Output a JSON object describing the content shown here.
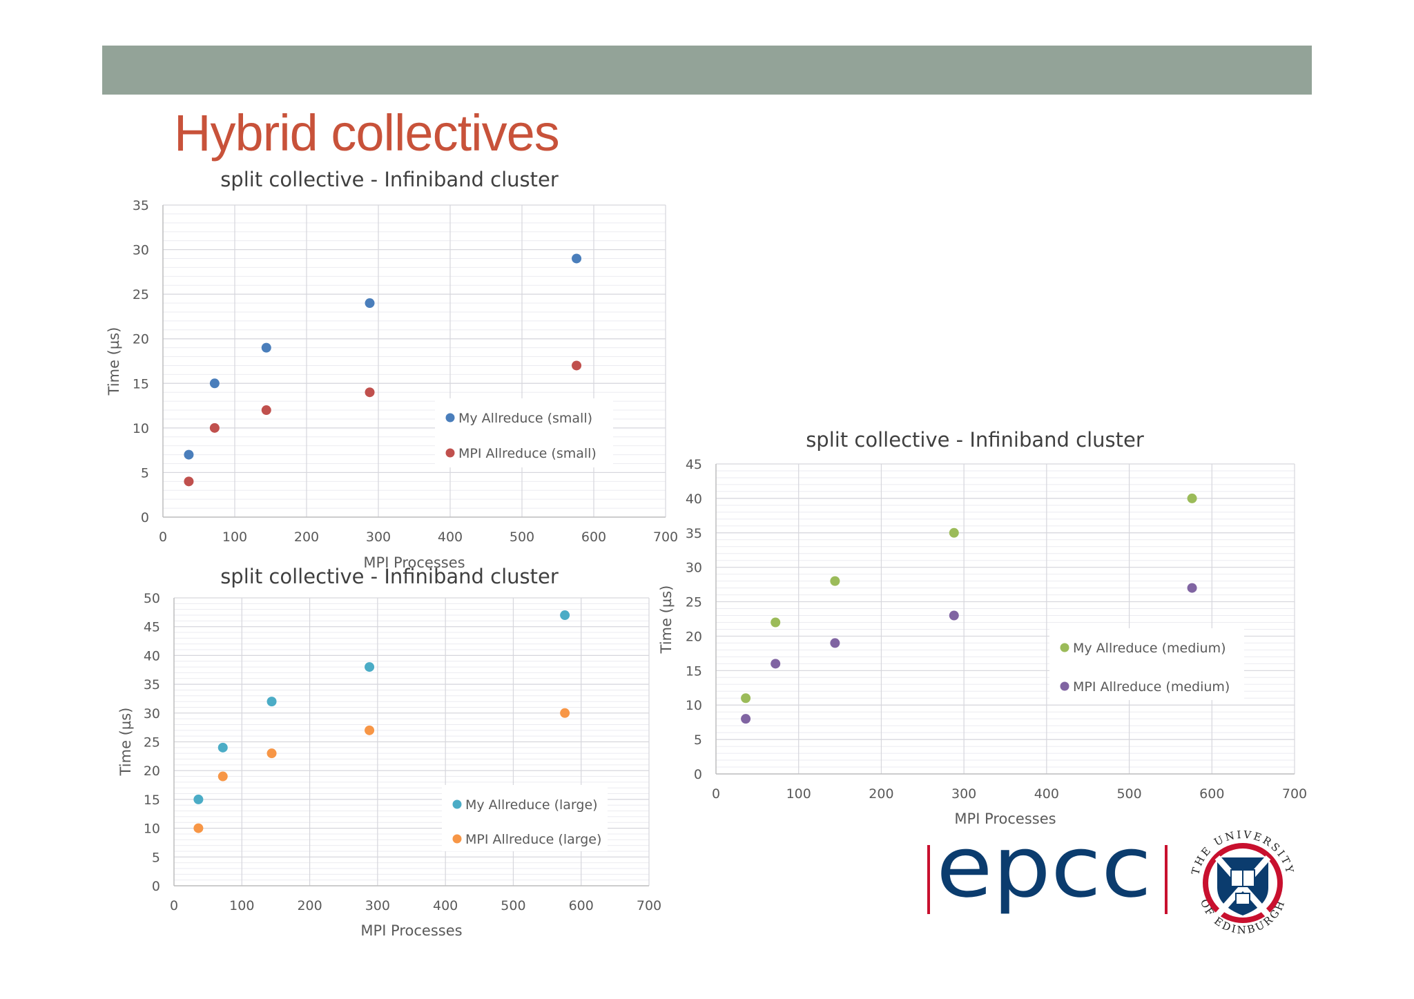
{
  "slide": {
    "title": "Hybrid collectives",
    "colors": {
      "band": "#93a398",
      "title": "#c8523a"
    }
  },
  "logos": {
    "epcc_text": "epcc",
    "university_text_top": "THE UNIVERSITY",
    "university_text_bottom": "OF EDINBURGH"
  },
  "chart_data": [
    {
      "type": "scatter",
      "title": "split collective - Infiniband cluster",
      "xlabel": "MPI Processes",
      "ylabel": "Time (µs)",
      "xlim": [
        0,
        700
      ],
      "ylim": [
        0,
        35
      ],
      "xticks": [
        0,
        100,
        200,
        300,
        400,
        500,
        600,
        700
      ],
      "yticks": [
        0,
        5,
        10,
        15,
        20,
        25,
        30,
        35
      ],
      "grid": true,
      "legend_position": "inside-bottom-right",
      "series": [
        {
          "name": "My Allreduce (small)",
          "color": "#4a7ebb",
          "x": [
            36,
            72,
            144,
            288,
            576
          ],
          "y": [
            7,
            15,
            19,
            24,
            29
          ]
        },
        {
          "name": "MPI Allreduce (small)",
          "color": "#c0504d",
          "x": [
            36,
            72,
            144,
            288,
            576
          ],
          "y": [
            4,
            10,
            12,
            14,
            17
          ]
        }
      ]
    },
    {
      "type": "scatter",
      "title": "split collective - Infiniband cluster",
      "xlabel": "MPI Processes",
      "ylabel": "Time (µs)",
      "xlim": [
        0,
        700
      ],
      "ylim": [
        0,
        50
      ],
      "xticks": [
        0,
        100,
        200,
        300,
        400,
        500,
        600,
        700
      ],
      "yticks": [
        0,
        5,
        10,
        15,
        20,
        25,
        30,
        35,
        40,
        45,
        50
      ],
      "grid": true,
      "legend_position": "inside-bottom-right",
      "series": [
        {
          "name": "My Allreduce (large)",
          "color": "#4bacc6",
          "x": [
            36,
            72,
            144,
            288,
            576
          ],
          "y": [
            15,
            24,
            32,
            38,
            47
          ]
        },
        {
          "name": "MPI Allreduce (large)",
          "color": "#f79646",
          "x": [
            36,
            72,
            144,
            288,
            576
          ],
          "y": [
            10,
            19,
            23,
            27,
            30
          ]
        }
      ]
    },
    {
      "type": "scatter",
      "title": "split collective - Infiniband cluster",
      "xlabel": "MPI Processes",
      "ylabel": "Time (µs)",
      "xlim": [
        0,
        700
      ],
      "ylim": [
        0,
        45
      ],
      "xticks": [
        0,
        100,
        200,
        300,
        400,
        500,
        600,
        700
      ],
      "yticks": [
        0,
        5,
        10,
        15,
        20,
        25,
        30,
        35,
        40,
        45
      ],
      "grid": true,
      "legend_position": "inside-right",
      "series": [
        {
          "name": "My Allreduce (medium)",
          "color": "#9bbb59",
          "x": [
            36,
            72,
            144,
            288,
            576
          ],
          "y": [
            11,
            22,
            28,
            35,
            40
          ]
        },
        {
          "name": "MPI Allreduce (medium)",
          "color": "#8064a2",
          "x": [
            36,
            72,
            144,
            288,
            576
          ],
          "y": [
            8,
            16,
            19,
            23,
            27
          ]
        }
      ]
    }
  ]
}
